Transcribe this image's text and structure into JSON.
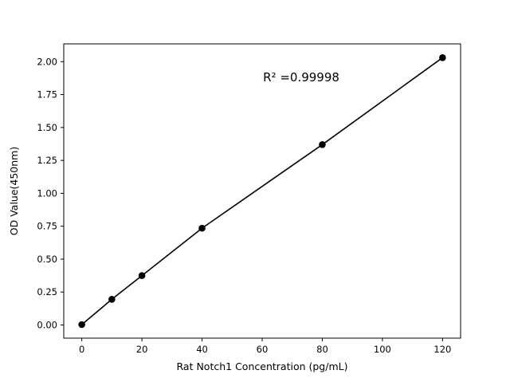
{
  "chart_data": {
    "type": "scatter",
    "title": "",
    "xlabel": "Rat Notch1 Concentration (pg/mL)",
    "ylabel": "OD Value(450nm)",
    "x": [
      0,
      10,
      20,
      40,
      80,
      120
    ],
    "y": [
      0.003,
      0.195,
      0.375,
      0.735,
      1.37,
      2.03
    ],
    "line_through_points": true,
    "annotation": {
      "text": "R² =0.99998",
      "x": 73,
      "y": 1.85
    },
    "xlim": [
      -6,
      126
    ],
    "ylim": [
      -0.1,
      2.135
    ],
    "xticks": {
      "values": [
        0,
        20,
        40,
        60,
        80,
        100,
        120
      ],
      "labels": [
        "0",
        "20",
        "40",
        "60",
        "80",
        "100",
        "120"
      ]
    },
    "yticks": {
      "values": [
        0,
        0.25,
        0.5,
        0.75,
        1.0,
        1.25,
        1.5,
        1.75,
        2.0
      ],
      "labels": [
        "0.00",
        "0.25",
        "0.50",
        "0.75",
        "1.00",
        "1.25",
        "1.50",
        "1.75",
        "2.00"
      ]
    },
    "marker_color": "#000000",
    "line_color": "#000000",
    "axis_color": "#000000",
    "grid": false,
    "legend": null
  }
}
